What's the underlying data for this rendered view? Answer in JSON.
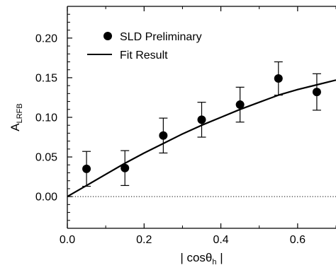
{
  "chart_data": {
    "type": "scatter",
    "xlabel_parts": [
      "| cosθ",
      "h",
      " |"
    ],
    "ylabel_parts": [
      "A",
      "LRFB"
    ],
    "xlim": [
      0.0,
      0.7
    ],
    "ylim": [
      -0.04,
      0.24
    ],
    "x_ticks": [
      "0.0",
      "0.2",
      "0.4",
      "0.6"
    ],
    "x_tick_values": [
      0.0,
      0.2,
      0.4,
      0.6
    ],
    "y_ticks": [
      "0.00",
      "0.05",
      "0.10",
      "0.15",
      "0.20"
    ],
    "y_tick_values": [
      0.0,
      0.05,
      0.1,
      0.15,
      0.2
    ],
    "reference_line": {
      "y": 0.0,
      "style": "dotted"
    },
    "legend_position": "top-left",
    "series": [
      {
        "name": "SLD Preliminary",
        "kind": "points_with_errorbars",
        "marker": "filled-circle",
        "color": "#000000",
        "x": [
          0.05,
          0.15,
          0.25,
          0.35,
          0.45,
          0.55,
          0.65
        ],
        "y": [
          0.035,
          0.036,
          0.077,
          0.097,
          0.116,
          0.149,
          0.132
        ],
        "yerr": [
          0.022,
          0.022,
          0.022,
          0.022,
          0.022,
          0.021,
          0.023
        ]
      },
      {
        "name": "Fit Result",
        "kind": "line",
        "color": "#000000",
        "x": [
          0.0,
          0.05,
          0.1,
          0.15,
          0.2,
          0.25,
          0.3,
          0.35,
          0.4,
          0.45,
          0.5,
          0.55,
          0.6,
          0.65,
          0.7
        ],
        "y": [
          0.0,
          0.014,
          0.028,
          0.042,
          0.055,
          0.067,
          0.079,
          0.09,
          0.1,
          0.11,
          0.119,
          0.128,
          0.135,
          0.141,
          0.147
        ]
      }
    ]
  }
}
